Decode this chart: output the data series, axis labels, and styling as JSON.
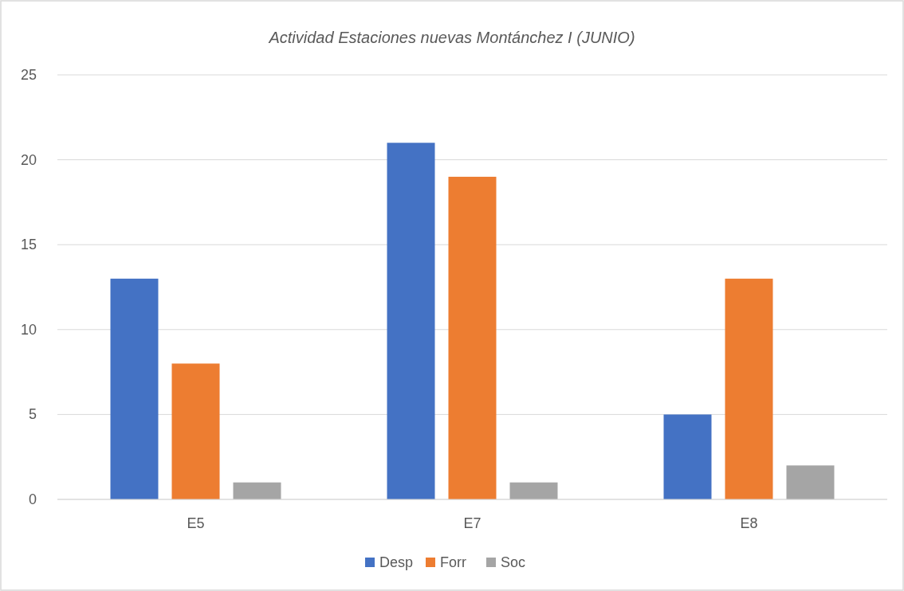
{
  "chart_data": {
    "type": "bar",
    "title": "Actividad Estaciones nuevas Montánchez I (JUNIO)",
    "categories": [
      "E5",
      "E7",
      "E8"
    ],
    "series": [
      {
        "name": "Desp",
        "color": "#4472c4",
        "values": [
          13,
          21,
          5
        ]
      },
      {
        "name": "Forr",
        "color": "#ed7d31",
        "values": [
          8,
          19,
          13
        ]
      },
      {
        "name": "Soc",
        "color": "#a5a5a5",
        "values": [
          1,
          1,
          2
        ]
      }
    ],
    "ylim": [
      0,
      25
    ],
    "yticks": [
      0,
      5,
      10,
      15,
      20,
      25
    ],
    "grid": "y",
    "legend": "bottom"
  }
}
